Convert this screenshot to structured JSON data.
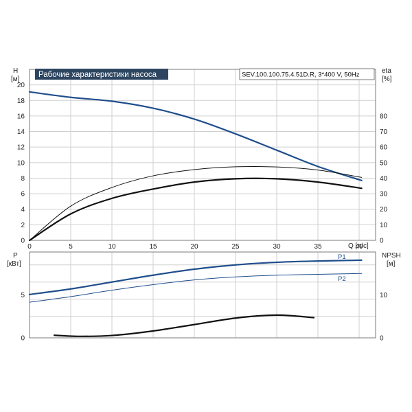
{
  "colors": {
    "blue": "#1f4e8c",
    "black": "#111111",
    "title_bg": "#2d4560",
    "title_fg": "#ffffff",
    "grid": "#cfcfcf"
  },
  "chart_data": [
    {
      "type": "line",
      "title": "Рабочие характеристики насоса",
      "model_label": "SEV.100.100.75.4.51D.R, 3*400 V, 50Hz",
      "xlabel": "Q [л/с]",
      "xlim": [
        0,
        42
      ],
      "xticks": [
        "0",
        "5",
        "10",
        "15",
        "20",
        "25",
        "30",
        "35",
        "40"
      ],
      "y_left": {
        "label_top": "H",
        "label_unit": "[м]",
        "ylim": [
          0,
          22
        ],
        "ticks": [
          "0",
          "2",
          "4",
          "6",
          "8",
          "10",
          "12",
          "14",
          "16",
          "18",
          "20"
        ]
      },
      "y_right": {
        "label_top": "eta",
        "label_unit": "[%]",
        "ylim": [
          0,
          110
        ],
        "ticks": [
          "0",
          "10",
          "20",
          "30",
          "40",
          "50",
          "60",
          "70",
          "80"
        ]
      },
      "grid": true,
      "series": [
        {
          "axis": "left",
          "color": "#1f4e8c",
          "width": 2.2,
          "x": [
            0,
            5,
            10,
            15,
            20,
            25,
            30,
            35,
            40.3
          ],
          "y": [
            19.1,
            18.4,
            17.9,
            17.0,
            15.6,
            13.7,
            11.6,
            9.5,
            7.7
          ]
        },
        {
          "axis": "right",
          "color": "#111111",
          "width": 1.0,
          "x": [
            0,
            5,
            10,
            15,
            20,
            25,
            30,
            35,
            40.3
          ],
          "y": [
            0,
            22,
            34,
            41.5,
            45.5,
            47.3,
            47.2,
            45.2,
            40.5
          ]
        },
        {
          "axis": "right",
          "color": "#111111",
          "width": 2.2,
          "x": [
            0,
            5,
            10,
            15,
            20,
            25,
            30,
            35,
            40.3
          ],
          "y": [
            0,
            17,
            27,
            33,
            37.5,
            39.6,
            39.6,
            37.5,
            33.5
          ]
        }
      ]
    },
    {
      "type": "line",
      "y_left": {
        "label_top": "P",
        "label_unit": "[кВт]",
        "ylim": [
          0,
          10
        ],
        "ticks": [
          "0",
          "5"
        ]
      },
      "y_right": {
        "label_top": "NPSH",
        "label_unit": "[м]",
        "ylim": [
          0,
          20
        ],
        "ticks": [
          "0",
          "10"
        ]
      },
      "xlim": [
        0,
        42
      ],
      "grid": true,
      "series": [
        {
          "name": "P1",
          "axis": "left",
          "color": "#1f4e8c",
          "width": 2.2,
          "x": [
            0,
            5,
            10,
            15,
            20,
            25,
            30,
            35,
            40.3
          ],
          "y": [
            5.05,
            5.7,
            6.5,
            7.3,
            8.0,
            8.5,
            8.8,
            8.95,
            9.05
          ]
        },
        {
          "name": "P2",
          "axis": "left",
          "color": "#1f4e8c",
          "width": 1.0,
          "x": [
            0,
            5,
            10,
            15,
            20,
            25,
            30,
            35,
            40.3
          ],
          "y": [
            4.15,
            4.8,
            5.55,
            6.2,
            6.75,
            7.1,
            7.3,
            7.4,
            7.5
          ]
        },
        {
          "axis": "right",
          "color": "#111111",
          "width": 2.2,
          "x": [
            3,
            6,
            10,
            15,
            20,
            25,
            30,
            34.5
          ],
          "y": [
            0.6,
            0.35,
            0.55,
            1.6,
            3.1,
            4.6,
            5.3,
            4.7
          ]
        }
      ]
    }
  ]
}
